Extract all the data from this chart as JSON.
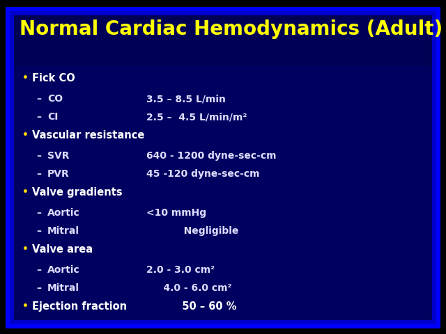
{
  "title": "Normal Cardiac Hemodynamics (Adult)",
  "title_color": "#FFFF00",
  "title_fontsize": 20,
  "outer_bg": "#000000",
  "blue_border1": "#0000FF",
  "blue_border2": "#1111DD",
  "content_bg": "#000070",
  "bullet_color": "#FFDD00",
  "text_color": "#FFFFFF",
  "sub_text_color": "#DDDDFF",
  "bullet_symbol": "•",
  "lines": [
    {
      "type": "bullet",
      "text": "Fick CO",
      "value": ""
    },
    {
      "type": "sub",
      "label": "CO",
      "value": "3.5 – 8.5 L/min"
    },
    {
      "type": "sub",
      "label": "CI",
      "value": "2.5 –  4.5 L/min/m²"
    },
    {
      "type": "bullet",
      "text": "Vascular resistance",
      "value": ""
    },
    {
      "type": "sub",
      "label": "SVR",
      "value": "640 - 1200 dyne-sec-cm"
    },
    {
      "type": "sub",
      "label": "PVR",
      "value": "45 -120 dyne-sec-cm"
    },
    {
      "type": "bullet",
      "text": "Valve gradients",
      "value": ""
    },
    {
      "type": "sub",
      "label": "Aortic",
      "value": "<10 mmHg"
    },
    {
      "type": "sub",
      "label": "Mitral",
      "value": "           Negligible"
    },
    {
      "type": "bullet",
      "text": "Valve area",
      "value": ""
    },
    {
      "type": "sub",
      "label": "Aortic",
      "value": "2.0 - 3.0 cm²"
    },
    {
      "type": "sub",
      "label": "Mitral",
      "value": "     4.0 - 6.0 cm²"
    },
    {
      "type": "bullet",
      "text": "Ejection fraction",
      "value": "          50 – 60 %"
    }
  ],
  "figw": 6.4,
  "figh": 4.8,
  "dpi": 100
}
